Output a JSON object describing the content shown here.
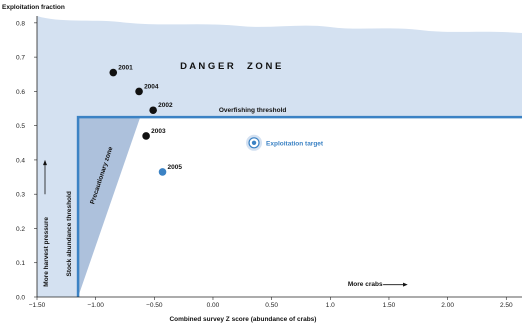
{
  "chart_data": {
    "type": "scatter",
    "title": "",
    "ylabel": "Exploitation fraction",
    "xlabel": "Combined survey Z score (abundance of crabs)",
    "xlim": [
      -1.5,
      2.6
    ],
    "ylim": [
      0.0,
      0.82
    ],
    "x_ticks": [
      -1.5,
      -1.0,
      -0.5,
      0.0,
      0.5,
      1.0,
      1.5,
      2.0,
      2.5
    ],
    "x_tick_labels": [
      "−1.50",
      "−1.00",
      "−0.50",
      "0.00",
      "0.50",
      "1.0",
      "1.50",
      "2.00",
      "2.50"
    ],
    "y_ticks": [
      0.0,
      0.1,
      0.2,
      0.3,
      0.4,
      0.5,
      0.6,
      0.7,
      0.8
    ],
    "y_tick_labels": [
      "0.0",
      "0.1",
      "0.2",
      "0.3",
      "0.4",
      "0.5",
      "0.6",
      "0.7",
      "0.8"
    ],
    "points": [
      {
        "label": "2001",
        "x": -0.85,
        "y": 0.655,
        "color": "#111111"
      },
      {
        "label": "2004",
        "x": -0.63,
        "y": 0.6,
        "color": "#111111"
      },
      {
        "label": "2002",
        "x": -0.51,
        "y": 0.545,
        "color": "#111111"
      },
      {
        "label": "2003",
        "x": -0.57,
        "y": 0.47,
        "color": "#111111"
      },
      {
        "label": "2005",
        "x": -0.43,
        "y": 0.365,
        "color": "#3b82c4"
      }
    ],
    "target": {
      "label": "Exploitation target",
      "x": 0.35,
      "y": 0.45
    },
    "overfishing_threshold": {
      "label": "Overfishing threshold",
      "y": 0.525,
      "x_start": -1.15
    },
    "stock_abundance_threshold": {
      "label": "Stock abundance threshold",
      "x": -1.15
    },
    "precautionary_zone_label": "Precautionary zone",
    "danger_zone_label": "D A N G E R     Z O N E",
    "more_harvest_label": "More harvest pressure",
    "more_crabs_label": "More crabs",
    "colors": {
      "danger_fill": "#d4e1f1",
      "precaution_fill": "#9fb6d6",
      "threshold_line": "#3b82c4",
      "accent_blue": "#3b82c4"
    }
  }
}
